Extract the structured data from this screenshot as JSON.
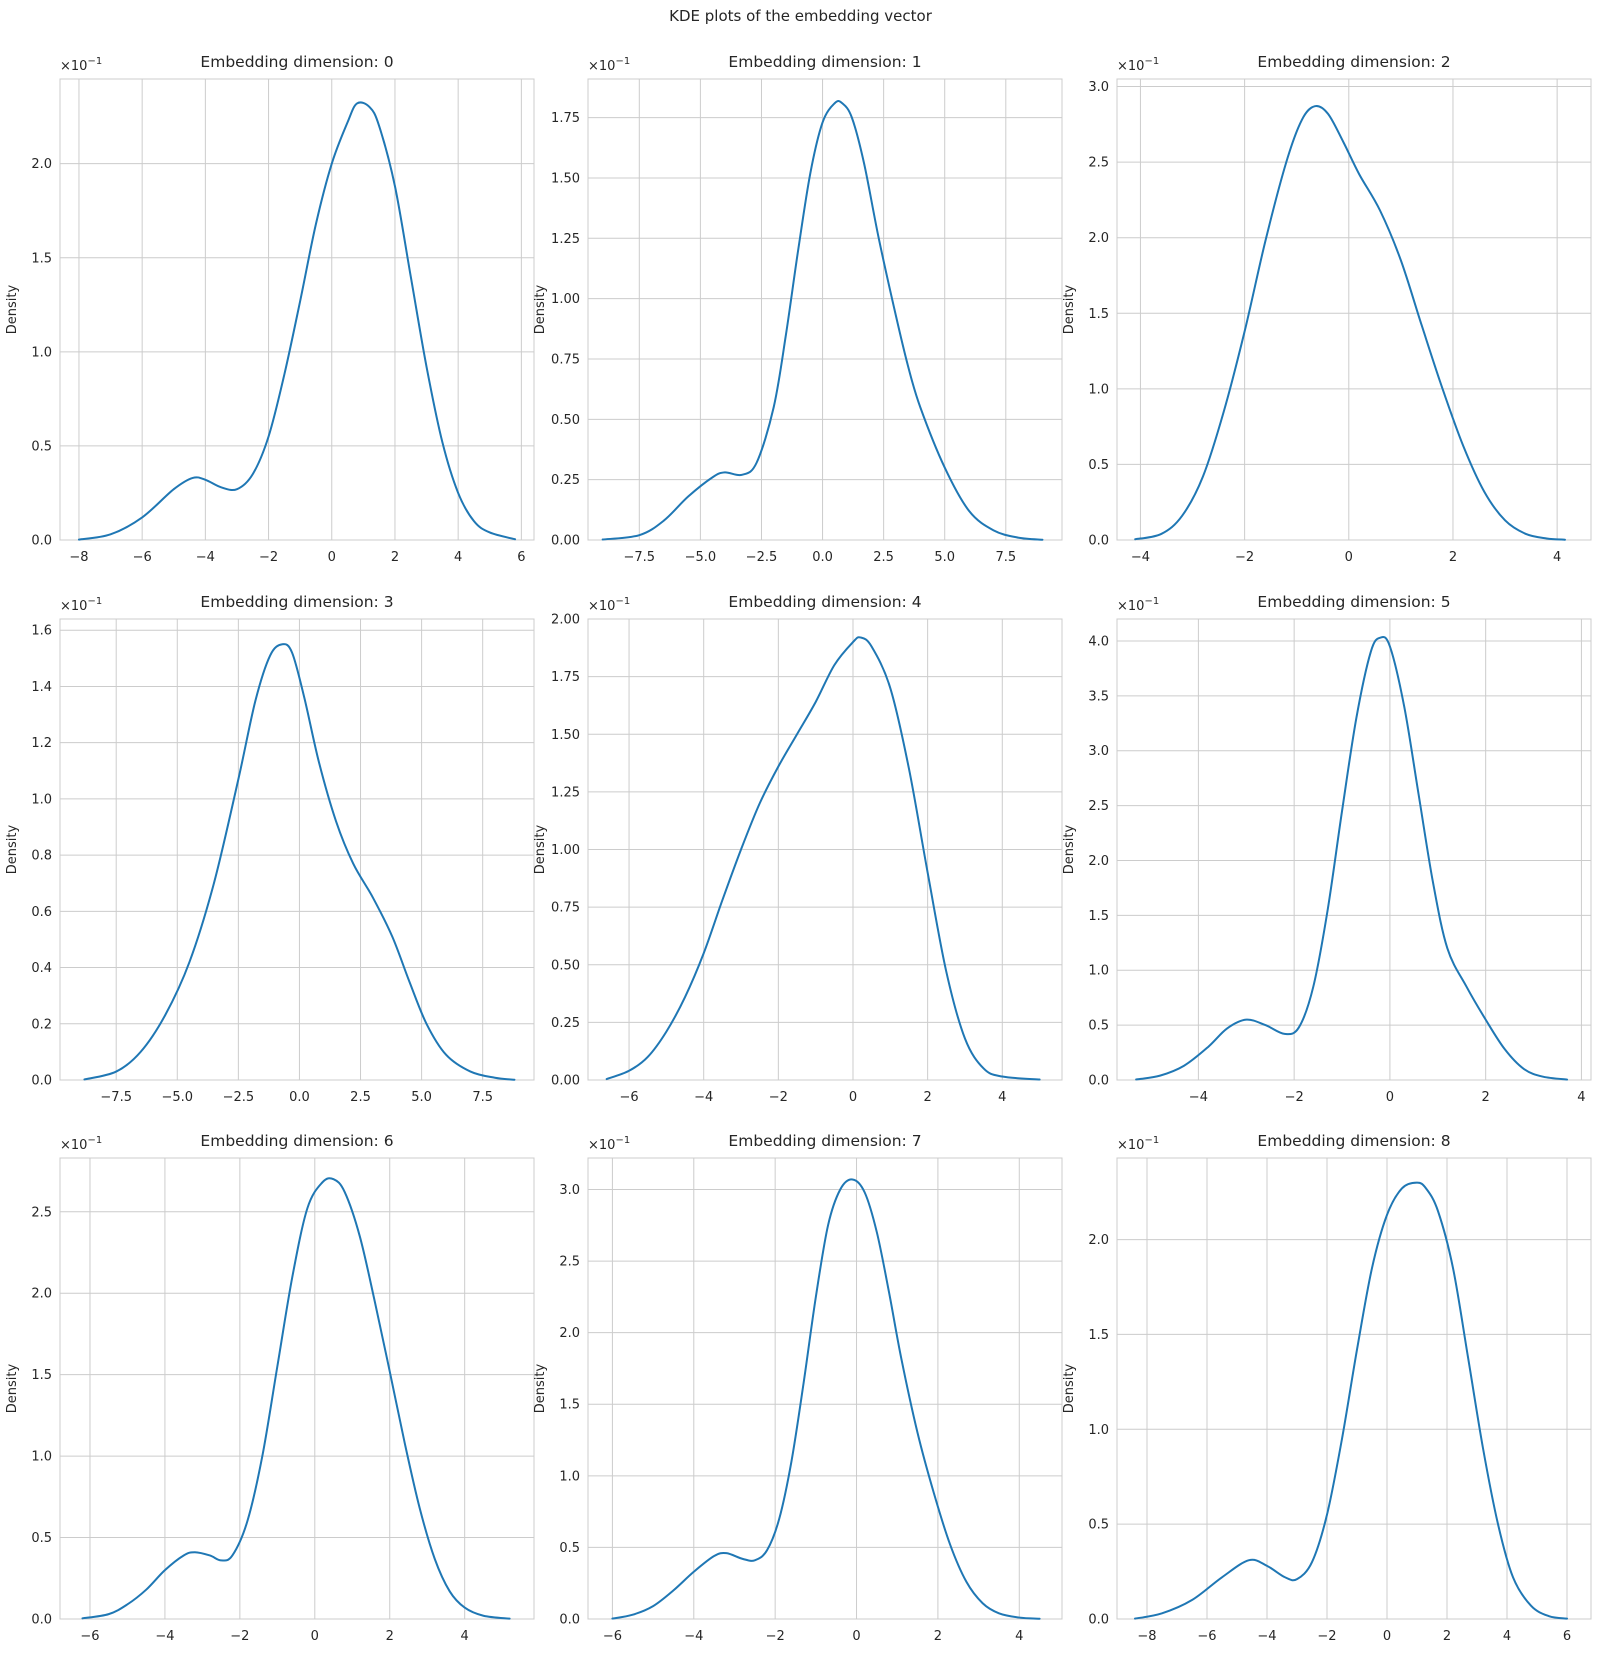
{
  "suptitle": "KDE plots of the embedding vector",
  "chart_data": [
    {
      "type": "line",
      "title": "Embedding dimension: 0",
      "xlabel": "",
      "ylabel": "Density",
      "multiplier": "×10",
      "multiplier_exp": "−1",
      "grid": true,
      "color": "#1f77b4",
      "xlim": [
        -8.6,
        6.4
      ],
      "ylim": [
        0,
        2.45
      ],
      "xticks": [
        -8,
        -6,
        -4,
        -2,
        0,
        2,
        4,
        6
      ],
      "yticks": [
        0.0,
        0.5,
        1.0,
        1.5,
        2.0
      ],
      "xtick_labels": [
        "−8",
        "−6",
        "−4",
        "−2",
        "0",
        "2",
        "4",
        "6"
      ],
      "ytick_labels": [
        "0.0",
        "0.5",
        "1.0",
        "1.5",
        "2.0"
      ],
      "x": [
        -8.0,
        -7.0,
        -6.0,
        -5.0,
        -4.4,
        -4.0,
        -3.5,
        -3.0,
        -2.5,
        -2.0,
        -1.5,
        -1.0,
        -0.5,
        0.0,
        0.5,
        0.8,
        1.2,
        1.5,
        2.0,
        2.5,
        3.0,
        3.5,
        4.0,
        4.5,
        5.0,
        5.8
      ],
      "y": [
        0.002,
        0.03,
        0.12,
        0.27,
        0.33,
        0.32,
        0.28,
        0.27,
        0.35,
        0.55,
        0.88,
        1.27,
        1.68,
        2.0,
        2.22,
        2.32,
        2.3,
        2.2,
        1.88,
        1.4,
        0.92,
        0.52,
        0.25,
        0.1,
        0.04,
        0.004
      ]
    },
    {
      "type": "line",
      "title": "Embedding dimension: 1",
      "xlabel": "",
      "ylabel": "Density",
      "multiplier": "×10",
      "multiplier_exp": "−1",
      "grid": true,
      "color": "#1f77b4",
      "xlim": [
        -9.6,
        9.8
      ],
      "ylim": [
        0,
        1.91
      ],
      "xticks": [
        -7.5,
        -5.0,
        -2.5,
        0.0,
        2.5,
        5.0,
        7.5
      ],
      "yticks": [
        0.0,
        0.25,
        0.5,
        0.75,
        1.0,
        1.25,
        1.5,
        1.75
      ],
      "xtick_labels": [
        "−7.5",
        "−5.0",
        "−2.5",
        "0.0",
        "2.5",
        "5.0",
        "7.5"
      ],
      "ytick_labels": [
        "0.00",
        "0.25",
        "0.50",
        "0.75",
        "1.00",
        "1.25",
        "1.50",
        "1.75"
      ],
      "x": [
        -9.0,
        -7.5,
        -6.5,
        -5.5,
        -4.5,
        -4.0,
        -3.3,
        -2.7,
        -2.0,
        -1.5,
        -1.0,
        -0.5,
        0.0,
        0.5,
        0.8,
        1.2,
        1.7,
        2.3,
        3.0,
        3.5,
        4.0,
        5.0,
        6.0,
        7.0,
        8.0,
        9.0
      ],
      "y": [
        0.002,
        0.02,
        0.08,
        0.18,
        0.26,
        0.28,
        0.27,
        0.32,
        0.55,
        0.85,
        1.2,
        1.52,
        1.73,
        1.81,
        1.81,
        1.75,
        1.56,
        1.25,
        0.93,
        0.72,
        0.55,
        0.3,
        0.12,
        0.04,
        0.01,
        0.001
      ]
    },
    {
      "type": "line",
      "title": "Embedding dimension: 2",
      "xlabel": "",
      "ylabel": "Density",
      "multiplier": "×10",
      "multiplier_exp": "−1",
      "grid": true,
      "color": "#1f77b4",
      "xlim": [
        -4.45,
        4.65
      ],
      "ylim": [
        0,
        3.05
      ],
      "xticks": [
        -4,
        -2,
        0,
        2,
        4
      ],
      "yticks": [
        0.0,
        0.5,
        1.0,
        1.5,
        2.0,
        2.5,
        3.0
      ],
      "xtick_labels": [
        "−4",
        "−2",
        "0",
        "2",
        "4"
      ],
      "ytick_labels": [
        "0.0",
        "0.5",
        "1.0",
        "1.5",
        "2.0",
        "2.5",
        "3.0"
      ],
      "x": [
        -4.1,
        -3.6,
        -3.2,
        -2.8,
        -2.4,
        -2.0,
        -1.6,
        -1.2,
        -0.9,
        -0.65,
        -0.4,
        -0.1,
        0.2,
        0.6,
        1.0,
        1.4,
        1.8,
        2.2,
        2.6,
        3.0,
        3.4,
        3.8,
        4.15
      ],
      "y": [
        0.005,
        0.04,
        0.16,
        0.42,
        0.85,
        1.38,
        1.98,
        2.5,
        2.78,
        2.87,
        2.82,
        2.63,
        2.42,
        2.18,
        1.85,
        1.42,
        1.0,
        0.62,
        0.32,
        0.13,
        0.04,
        0.01,
        0.002
      ]
    },
    {
      "type": "line",
      "title": "Embedding dimension: 3",
      "xlabel": "",
      "ylabel": "Density",
      "multiplier": "×10",
      "multiplier_exp": "−1",
      "grid": true,
      "color": "#1f77b4",
      "xlim": [
        -9.8,
        9.6
      ],
      "ylim": [
        0,
        1.64
      ],
      "xticks": [
        -7.5,
        -5.0,
        -2.5,
        0.0,
        2.5,
        5.0,
        7.5
      ],
      "yticks": [
        0.0,
        0.2,
        0.4,
        0.6,
        0.8,
        1.0,
        1.2,
        1.4,
        1.6
      ],
      "xtick_labels": [
        "−7.5",
        "−5.0",
        "−2.5",
        "0.0",
        "2.5",
        "5.0",
        "7.5"
      ],
      "ytick_labels": [
        "0.0",
        "0.2",
        "0.4",
        "0.6",
        "0.8",
        "1.0",
        "1.2",
        "1.4",
        "1.6"
      ],
      "x": [
        -8.8,
        -7.5,
        -6.5,
        -5.5,
        -4.5,
        -3.5,
        -2.5,
        -1.8,
        -1.2,
        -0.7,
        -0.3,
        0.2,
        0.8,
        1.5,
        2.2,
        3.0,
        3.8,
        4.5,
        5.2,
        6.0,
        7.0,
        8.0,
        8.8
      ],
      "y": [
        0.002,
        0.03,
        0.1,
        0.23,
        0.42,
        0.7,
        1.07,
        1.35,
        1.51,
        1.55,
        1.52,
        1.36,
        1.13,
        0.92,
        0.77,
        0.65,
        0.51,
        0.35,
        0.2,
        0.09,
        0.03,
        0.008,
        0.001
      ]
    },
    {
      "type": "line",
      "title": "Embedding dimension: 4",
      "xlabel": "",
      "ylabel": "Density",
      "multiplier": "×10",
      "multiplier_exp": "−1",
      "grid": true,
      "color": "#1f77b4",
      "xlim": [
        -7.1,
        5.6
      ],
      "ylim": [
        0,
        2.0
      ],
      "xticks": [
        -6,
        -4,
        -2,
        0,
        2,
        4
      ],
      "yticks": [
        0.0,
        0.25,
        0.5,
        0.75,
        1.0,
        1.25,
        1.5,
        1.75,
        2.0
      ],
      "xtick_labels": [
        "−6",
        "−4",
        "−2",
        "0",
        "2",
        "4"
      ],
      "ytick_labels": [
        "0.00",
        "0.25",
        "0.50",
        "0.75",
        "1.00",
        "1.25",
        "1.50",
        "1.75",
        "2.00"
      ],
      "x": [
        -6.6,
        -6.0,
        -5.5,
        -5.0,
        -4.5,
        -4.0,
        -3.5,
        -3.0,
        -2.5,
        -2.0,
        -1.5,
        -1.0,
        -0.5,
        0.0,
        0.2,
        0.5,
        1.0,
        1.5,
        2.0,
        2.5,
        3.0,
        3.5,
        4.0,
        5.0
      ],
      "y": [
        0.004,
        0.04,
        0.1,
        0.21,
        0.36,
        0.55,
        0.78,
        1.0,
        1.2,
        1.36,
        1.5,
        1.64,
        1.8,
        1.9,
        1.92,
        1.88,
        1.7,
        1.35,
        0.9,
        0.47,
        0.18,
        0.05,
        0.015,
        0.002
      ]
    },
    {
      "type": "line",
      "title": "Embedding dimension: 5",
      "xlabel": "",
      "ylabel": "Density",
      "multiplier": "×10",
      "multiplier_exp": "−1",
      "grid": true,
      "color": "#1f77b4",
      "xlim": [
        -5.7,
        4.2
      ],
      "ylim": [
        0,
        4.2
      ],
      "xticks": [
        -4,
        -2,
        0,
        2,
        4
      ],
      "yticks": [
        0.0,
        0.5,
        1.0,
        1.5,
        2.0,
        2.5,
        3.0,
        3.5,
        4.0
      ],
      "xtick_labels": [
        "−4",
        "−2",
        "0",
        "2",
        "4"
      ],
      "ytick_labels": [
        "0.0",
        "0.5",
        "1.0",
        "1.5",
        "2.0",
        "2.5",
        "3.0",
        "3.5",
        "4.0"
      ],
      "x": [
        -5.3,
        -4.8,
        -4.3,
        -3.8,
        -3.4,
        -3.0,
        -2.6,
        -2.2,
        -1.9,
        -1.6,
        -1.3,
        -1.0,
        -0.7,
        -0.4,
        -0.2,
        0.0,
        0.3,
        0.6,
        0.9,
        1.2,
        1.6,
        2.0,
        2.4,
        2.8,
        3.2,
        3.7
      ],
      "y": [
        0.005,
        0.04,
        0.13,
        0.3,
        0.47,
        0.55,
        0.5,
        0.42,
        0.48,
        0.85,
        1.55,
        2.45,
        3.3,
        3.9,
        4.03,
        3.95,
        3.4,
        2.6,
        1.8,
        1.2,
        0.85,
        0.55,
        0.28,
        0.1,
        0.03,
        0.004
      ]
    },
    {
      "type": "line",
      "title": "Embedding dimension: 6",
      "xlabel": "",
      "ylabel": "Density",
      "multiplier": "×10",
      "multiplier_exp": "−1",
      "grid": true,
      "color": "#1f77b4",
      "xlim": [
        -6.8,
        5.85
      ],
      "ylim": [
        0,
        2.83
      ],
      "xticks": [
        -6,
        -4,
        -2,
        0,
        2,
        4
      ],
      "yticks": [
        0.0,
        0.5,
        1.0,
        1.5,
        2.0,
        2.5
      ],
      "xtick_labels": [
        "−6",
        "−4",
        "−2",
        "0",
        "2",
        "4"
      ],
      "ytick_labels": [
        "0.0",
        "0.5",
        "1.0",
        "1.5",
        "2.0",
        "2.5"
      ],
      "x": [
        -6.2,
        -5.5,
        -5.0,
        -4.5,
        -4.0,
        -3.5,
        -3.2,
        -2.8,
        -2.5,
        -2.2,
        -1.8,
        -1.4,
        -1.0,
        -0.6,
        -0.2,
        0.2,
        0.5,
        0.8,
        1.2,
        1.6,
        2.0,
        2.4,
        2.8,
        3.2,
        3.6,
        4.0,
        4.5,
        5.2
      ],
      "y": [
        0.004,
        0.03,
        0.09,
        0.18,
        0.3,
        0.39,
        0.41,
        0.39,
        0.36,
        0.39,
        0.6,
        1.0,
        1.55,
        2.1,
        2.52,
        2.68,
        2.7,
        2.62,
        2.35,
        1.95,
        1.52,
        1.08,
        0.68,
        0.37,
        0.17,
        0.07,
        0.02,
        0.002
      ]
    },
    {
      "type": "line",
      "title": "Embedding dimension: 7",
      "xlabel": "",
      "ylabel": "Density",
      "multiplier": "×10",
      "multiplier_exp": "−1",
      "grid": true,
      "color": "#1f77b4",
      "xlim": [
        -6.6,
        5.05
      ],
      "ylim": [
        0,
        3.22
      ],
      "xticks": [
        -6,
        -4,
        -2,
        0,
        2,
        4
      ],
      "yticks": [
        0.0,
        0.5,
        1.0,
        1.5,
        2.0,
        2.5,
        3.0
      ],
      "xtick_labels": [
        "−6",
        "−4",
        "−2",
        "0",
        "2",
        "4"
      ],
      "ytick_labels": [
        "0.0",
        "0.5",
        "1.0",
        "1.5",
        "2.0",
        "2.5",
        "3.0"
      ],
      "x": [
        -6.0,
        -5.5,
        -5.0,
        -4.5,
        -4.0,
        -3.5,
        -3.2,
        -2.8,
        -2.5,
        -2.2,
        -1.9,
        -1.6,
        -1.3,
        -1.0,
        -0.7,
        -0.4,
        -0.1,
        0.2,
        0.5,
        0.8,
        1.1,
        1.5,
        1.9,
        2.3,
        2.7,
        3.1,
        3.5,
        4.0,
        4.5
      ],
      "y": [
        0.003,
        0.03,
        0.09,
        0.2,
        0.33,
        0.44,
        0.46,
        0.42,
        0.41,
        0.48,
        0.7,
        1.1,
        1.65,
        2.25,
        2.75,
        3.0,
        3.07,
        2.98,
        2.7,
        2.28,
        1.82,
        1.3,
        0.88,
        0.52,
        0.26,
        0.11,
        0.04,
        0.01,
        0.002
      ]
    },
    {
      "type": "line",
      "title": "Embedding dimension: 8",
      "xlabel": "",
      "ylabel": "Density",
      "multiplier": "×10",
      "multiplier_exp": "−1",
      "grid": true,
      "color": "#1f77b4",
      "xlim": [
        -9.0,
        6.8
      ],
      "ylim": [
        0,
        2.43
      ],
      "xticks": [
        -8,
        -6,
        -4,
        -2,
        0,
        2,
        4,
        6
      ],
      "yticks": [
        0.0,
        0.5,
        1.0,
        1.5,
        2.0
      ],
      "xtick_labels": [
        "−8",
        "−6",
        "−4",
        "−2",
        "0",
        "2",
        "4",
        "6"
      ],
      "ytick_labels": [
        "0.0",
        "0.5",
        "1.0",
        "1.5",
        "2.0"
      ],
      "x": [
        -8.4,
        -7.5,
        -6.5,
        -5.5,
        -4.6,
        -4.0,
        -3.4,
        -3.0,
        -2.5,
        -2.0,
        -1.5,
        -1.0,
        -0.5,
        0.0,
        0.5,
        1.0,
        1.3,
        1.7,
        2.2,
        2.7,
        3.2,
        3.7,
        4.2,
        4.8,
        5.4,
        6.0
      ],
      "y": [
        0.002,
        0.03,
        0.1,
        0.22,
        0.31,
        0.28,
        0.22,
        0.21,
        0.3,
        0.55,
        0.95,
        1.42,
        1.85,
        2.13,
        2.27,
        2.3,
        2.27,
        2.15,
        1.85,
        1.38,
        0.9,
        0.5,
        0.22,
        0.07,
        0.015,
        0.002
      ]
    }
  ]
}
